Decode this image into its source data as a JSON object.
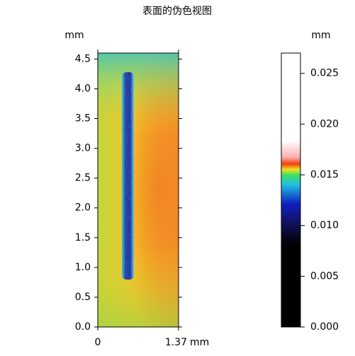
{
  "chart_data": {
    "type": "image",
    "title": "表面的伪色视图",
    "xlabel": "mm",
    "ylabel": "mm",
    "xlim": [
      0,
      1.37
    ],
    "xticks": [
      0,
      1.37
    ],
    "ylim": [
      0,
      4.6
    ],
    "yticks": [
      {
        "value": 0,
        "label": "0.0"
      },
      {
        "value": 0.5,
        "label": "0.5"
      },
      {
        "value": 1,
        "label": "1.0"
      },
      {
        "value": 1.5,
        "label": "1.5"
      },
      {
        "value": 2,
        "label": "2.0"
      },
      {
        "value": 2.5,
        "label": "2.5"
      },
      {
        "value": 3,
        "label": "3.0"
      },
      {
        "value": 3.5,
        "label": "3.5"
      },
      {
        "value": 4,
        "label": "4.0"
      },
      {
        "value": 4.5,
        "label": "4.5"
      }
    ],
    "colorbar": {
      "label": "mm",
      "lim": [
        0,
        0.027
      ],
      "ticks": [
        {
          "value": 0,
          "label": "0.000"
        },
        {
          "value": 0.005,
          "label": "0.005"
        },
        {
          "value": 0.01,
          "label": "0.010"
        },
        {
          "value": 0.015,
          "label": "0.015"
        },
        {
          "value": 0.02,
          "label": "0.020"
        },
        {
          "value": 0.025,
          "label": "0.025"
        }
      ]
    }
  }
}
